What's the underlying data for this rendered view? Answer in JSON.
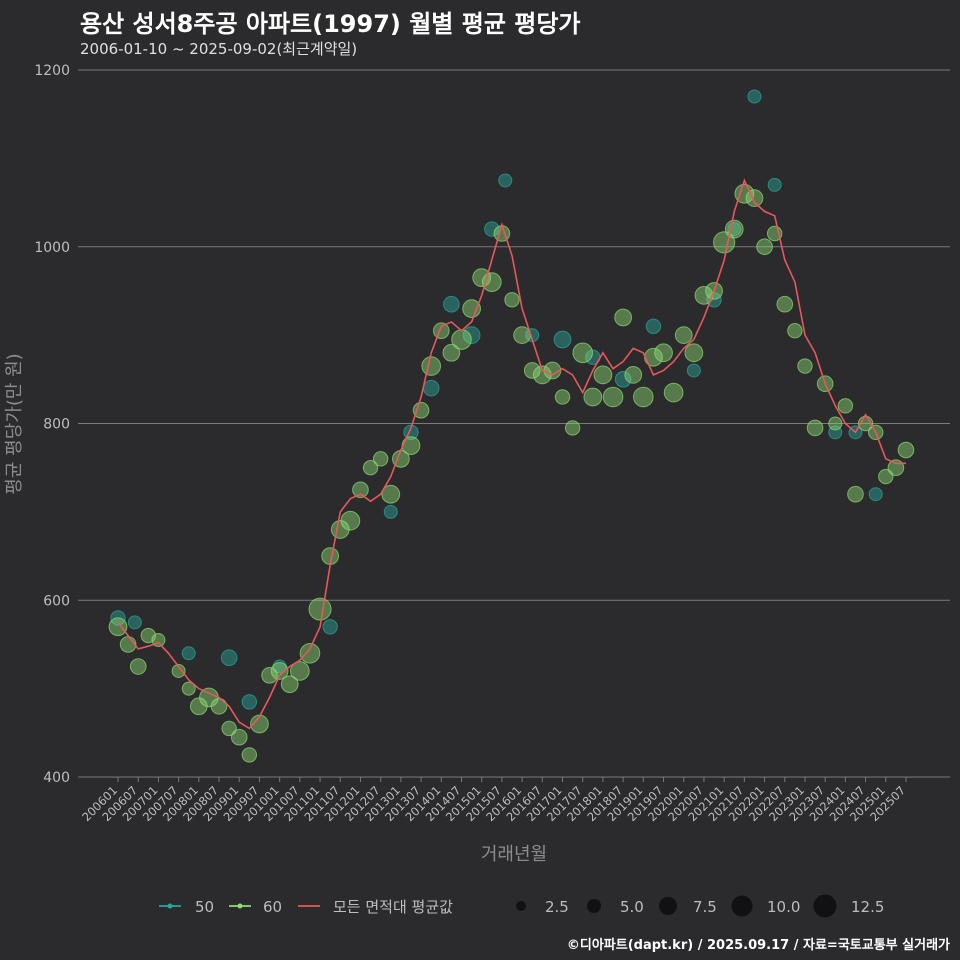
{
  "title": "용산 성서8주공 아파트(1997) 월별 평균 평당가",
  "subtitle": "2006-01-10 ~ 2025-09-02(최근계약일)",
  "credit": "©디아파트(dapt.kr) / 2025.09.17 / 자료=국토교통부 실거래가",
  "colors": {
    "background": "#2b2b2d",
    "grid": "#7a7a7a",
    "series_50": "#2aa79b",
    "series_60": "#8fdc74",
    "avg": "#e8575c"
  },
  "chart_data": {
    "type": "scatter",
    "xlabel": "거래년월",
    "ylabel": "평균 평당가(만 원)",
    "ylim": [
      400,
      1200
    ],
    "yticks": [
      400,
      600,
      800,
      1000,
      1200
    ],
    "x_ticks": [
      "200601",
      "200607",
      "200701",
      "200707",
      "200801",
      "200807",
      "200901",
      "200907",
      "201001",
      "201007",
      "201101",
      "201107",
      "201201",
      "201207",
      "201301",
      "201307",
      "201401",
      "201407",
      "201501",
      "201507",
      "201601",
      "201607",
      "201701",
      "201707",
      "201801",
      "201807",
      "201901",
      "201907",
      "202001",
      "202007",
      "202101",
      "202107",
      "202201",
      "202207",
      "202301",
      "202307",
      "202401",
      "202407",
      "202501",
      "202507"
    ],
    "grid": true,
    "legend_position": "bottom",
    "legend": {
      "series": [
        "50",
        "60",
        "모든 면적대 평균값"
      ],
      "size_values": [
        "2.5",
        "5.0",
        "7.5",
        "10.0",
        "12.5"
      ]
    },
    "series": [
      {
        "name": "모든 면적대 평균값",
        "type": "line",
        "anchors": [
          [
            "200601",
            575
          ],
          [
            "200604",
            560
          ],
          [
            "200607",
            545
          ],
          [
            "200610",
            548
          ],
          [
            "200701",
            552
          ],
          [
            "200704",
            540
          ],
          [
            "200707",
            525
          ],
          [
            "200710",
            510
          ],
          [
            "200801",
            500
          ],
          [
            "200804",
            495
          ],
          [
            "200807",
            490
          ],
          [
            "200810",
            480
          ],
          [
            "200901",
            462
          ],
          [
            "200904",
            455
          ],
          [
            "200907",
            468
          ],
          [
            "200910",
            490
          ],
          [
            "201001",
            515
          ],
          [
            "201004",
            525
          ],
          [
            "201007",
            532
          ],
          [
            "201010",
            545
          ],
          [
            "201101",
            570
          ],
          [
            "201104",
            640
          ],
          [
            "201107",
            700
          ],
          [
            "201110",
            715
          ],
          [
            "201201",
            720
          ],
          [
            "201204",
            712
          ],
          [
            "201207",
            720
          ],
          [
            "201210",
            740
          ],
          [
            "201301",
            770
          ],
          [
            "201304",
            795
          ],
          [
            "201307",
            830
          ],
          [
            "201310",
            880
          ],
          [
            "201401",
            910
          ],
          [
            "201404",
            915
          ],
          [
            "201407",
            905
          ],
          [
            "201410",
            915
          ],
          [
            "201501",
            945
          ],
          [
            "201504",
            985
          ],
          [
            "201507",
            1025
          ],
          [
            "201510",
            990
          ],
          [
            "201601",
            930
          ],
          [
            "201604",
            895
          ],
          [
            "201607",
            860
          ],
          [
            "201610",
            855
          ],
          [
            "201701",
            862
          ],
          [
            "201704",
            855
          ],
          [
            "201707",
            835
          ],
          [
            "201710",
            860
          ],
          [
            "201801",
            880
          ],
          [
            "201804",
            862
          ],
          [
            "201807",
            870
          ],
          [
            "201810",
            885
          ],
          [
            "201901",
            880
          ],
          [
            "201904",
            855
          ],
          [
            "201907",
            860
          ],
          [
            "201910",
            870
          ],
          [
            "202001",
            885
          ],
          [
            "202004",
            895
          ],
          [
            "202007",
            920
          ],
          [
            "202010",
            950
          ],
          [
            "202101",
            985
          ],
          [
            "202104",
            1040
          ],
          [
            "202107",
            1075
          ],
          [
            "202110",
            1050
          ],
          [
            "202201",
            1040
          ],
          [
            "202204",
            1035
          ],
          [
            "202207",
            985
          ],
          [
            "202210",
            960
          ],
          [
            "202301",
            900
          ],
          [
            "202304",
            880
          ],
          [
            "202307",
            845
          ],
          [
            "202310",
            820
          ],
          [
            "202401",
            800
          ],
          [
            "202404",
            790
          ],
          [
            "202407",
            810
          ],
          [
            "202410",
            790
          ],
          [
            "202501",
            760
          ],
          [
            "202504",
            755
          ],
          [
            "202507",
            755
          ]
        ]
      },
      {
        "name": "50",
        "type": "bubble",
        "points": [
          [
            "200601",
            580,
            4
          ],
          [
            "200606",
            575,
            3
          ],
          [
            "200710",
            540,
            3
          ],
          [
            "200810",
            535,
            5
          ],
          [
            "200904",
            485,
            4
          ],
          [
            "201001",
            525,
            3
          ],
          [
            "201104",
            570,
            4
          ],
          [
            "201210",
            700,
            3
          ],
          [
            "201304",
            790,
            4
          ],
          [
            "201310",
            840,
            5
          ],
          [
            "201404",
            935,
            5
          ],
          [
            "201410",
            900,
            6
          ],
          [
            "201504",
            1020,
            4
          ],
          [
            "201508",
            1075,
            3
          ],
          [
            "201604",
            900,
            3
          ],
          [
            "201701",
            895,
            6
          ],
          [
            "201710",
            875,
            4
          ],
          [
            "201807",
            850,
            5
          ],
          [
            "201904",
            910,
            4
          ],
          [
            "202004",
            860,
            3
          ],
          [
            "202010",
            940,
            4
          ],
          [
            "202104",
            1020,
            3
          ],
          [
            "202110",
            1170,
            3
          ],
          [
            "202204",
            1070,
            3
          ],
          [
            "202310",
            790,
            3
          ],
          [
            "202404",
            790,
            3
          ],
          [
            "202410",
            720,
            3
          ]
        ]
      },
      {
        "name": "60",
        "type": "bubble",
        "points": [
          [
            "200601",
            570,
            7
          ],
          [
            "200604",
            550,
            5
          ],
          [
            "200607",
            525,
            5
          ],
          [
            "200610",
            560,
            4
          ],
          [
            "200701",
            555,
            3
          ],
          [
            "200707",
            520,
            3
          ],
          [
            "200710",
            500,
            3
          ],
          [
            "200801",
            480,
            6
          ],
          [
            "200804",
            490,
            8
          ],
          [
            "200807",
            480,
            5
          ],
          [
            "200810",
            455,
            4
          ],
          [
            "200901",
            445,
            5
          ],
          [
            "200904",
            425,
            4
          ],
          [
            "200907",
            460,
            7
          ],
          [
            "200910",
            515,
            5
          ],
          [
            "201001",
            520,
            6
          ],
          [
            "201004",
            505,
            6
          ],
          [
            "201007",
            520,
            8
          ],
          [
            "201010",
            540,
            9
          ],
          [
            "201101",
            590,
            12
          ],
          [
            "201104",
            650,
            6
          ],
          [
            "201107",
            680,
            7
          ],
          [
            "201110",
            690,
            8
          ],
          [
            "201201",
            725,
            5
          ],
          [
            "201204",
            750,
            4
          ],
          [
            "201207",
            760,
            4
          ],
          [
            "201210",
            720,
            7
          ],
          [
            "201301",
            760,
            6
          ],
          [
            "201304",
            775,
            7
          ],
          [
            "201307",
            815,
            5
          ],
          [
            "201310",
            865,
            8
          ],
          [
            "201401",
            905,
            5
          ],
          [
            "201404",
            880,
            6
          ],
          [
            "201407",
            895,
            9
          ],
          [
            "201410",
            930,
            7
          ],
          [
            "201501",
            965,
            7
          ],
          [
            "201504",
            960,
            8
          ],
          [
            "201507",
            1015,
            5
          ],
          [
            "201510",
            940,
            4
          ],
          [
            "201601",
            900,
            6
          ],
          [
            "201604",
            860,
            5
          ],
          [
            "201607",
            855,
            7
          ],
          [
            "201610",
            860,
            6
          ],
          [
            "201701",
            830,
            4
          ],
          [
            "201704",
            795,
            4
          ],
          [
            "201707",
            880,
            9
          ],
          [
            "201710",
            830,
            7
          ],
          [
            "201801",
            855,
            7
          ],
          [
            "201804",
            830,
            9
          ],
          [
            "201807",
            920,
            6
          ],
          [
            "201810",
            855,
            6
          ],
          [
            "201901",
            830,
            9
          ],
          [
            "201904",
            875,
            7
          ],
          [
            "201907",
            880,
            7
          ],
          [
            "201910",
            835,
            8
          ],
          [
            "202001",
            900,
            6
          ],
          [
            "202004",
            880,
            7
          ],
          [
            "202007",
            945,
            7
          ],
          [
            "202010",
            950,
            6
          ],
          [
            "202101",
            1005,
            11
          ],
          [
            "202104",
            1020,
            7
          ],
          [
            "202107",
            1060,
            8
          ],
          [
            "202110",
            1055,
            6
          ],
          [
            "202201",
            1000,
            5
          ],
          [
            "202204",
            1015,
            4
          ],
          [
            "202207",
            935,
            5
          ],
          [
            "202210",
            905,
            4
          ],
          [
            "202301",
            865,
            4
          ],
          [
            "202304",
            795,
            5
          ],
          [
            "202307",
            845,
            5
          ],
          [
            "202310",
            800,
            3
          ],
          [
            "202401",
            820,
            4
          ],
          [
            "202404",
            720,
            5
          ],
          [
            "202407",
            800,
            4
          ],
          [
            "202410",
            790,
            4
          ],
          [
            "202501",
            740,
            4
          ],
          [
            "202504",
            750,
            5
          ],
          [
            "202507",
            770,
            5
          ]
        ]
      }
    ]
  }
}
